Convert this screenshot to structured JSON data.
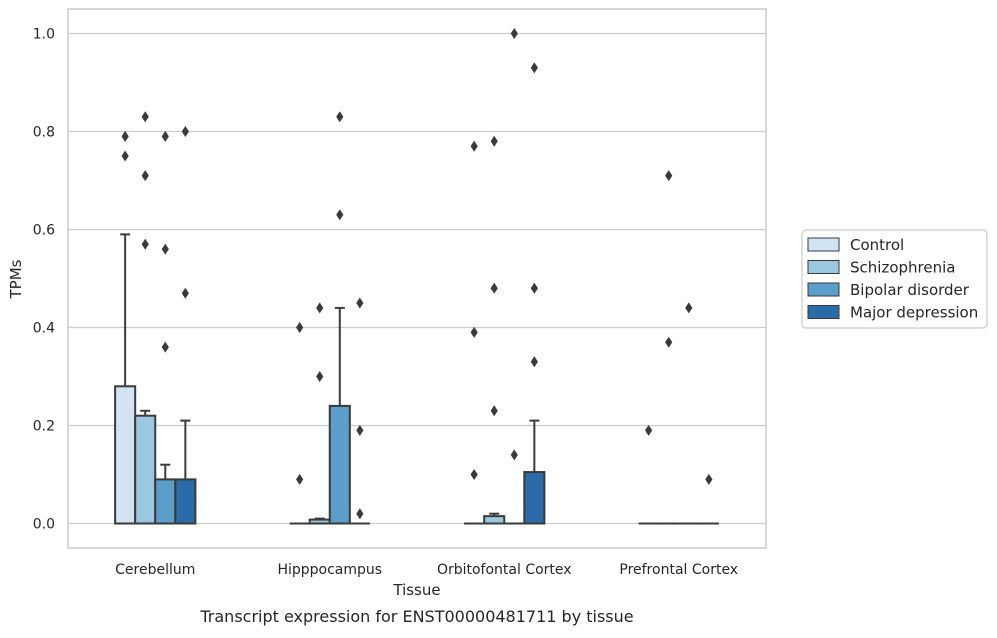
{
  "chart_data": {
    "type": "box",
    "xlabel": "Tissue",
    "ylabel": "TPMs",
    "caption": "Transcript expression for ENST00000481711 by tissue",
    "categories": [
      "Cerebellum",
      "Hipppocampus",
      "Orbitofontal Cortex",
      "Prefrontal Cortex"
    ],
    "ylim": [
      -0.05,
      1.05
    ],
    "yticks": [
      "0.0",
      "0.2",
      "0.4",
      "0.6",
      "0.8",
      "1.0"
    ],
    "grid": true,
    "legend_position": "right",
    "series": [
      {
        "name": "Control",
        "color": "#d2e3f3",
        "boxes": [
          {
            "q1": 0.0,
            "median": 0.0,
            "q3": 0.28,
            "whisker_low": 0.0,
            "whisker_high": 0.59,
            "outliers": [
              0.79,
              0.75
            ]
          },
          {
            "q1": 0.0,
            "median": 0.0,
            "q3": 0.0,
            "whisker_low": 0.0,
            "whisker_high": 0.0,
            "outliers": [
              0.4,
              0.09
            ]
          },
          {
            "q1": 0.0,
            "median": 0.0,
            "q3": 0.0,
            "whisker_low": 0.0,
            "whisker_high": 0.0,
            "outliers": [
              0.77,
              0.39,
              0.1
            ]
          },
          {
            "q1": 0.0,
            "median": 0.0,
            "q3": 0.0,
            "whisker_low": 0.0,
            "whisker_high": 0.0,
            "outliers": [
              0.19
            ]
          }
        ]
      },
      {
        "name": "Schizophrenia",
        "color": "#9ac8e0",
        "boxes": [
          {
            "q1": 0.0,
            "median": 0.0,
            "q3": 0.22,
            "whisker_low": 0.0,
            "whisker_high": 0.23,
            "outliers": [
              0.83,
              0.71,
              0.57
            ]
          },
          {
            "q1": 0.0,
            "median": 0.0,
            "q3": 0.008,
            "whisker_low": 0.0,
            "whisker_high": 0.01,
            "outliers": [
              0.44,
              0.3
            ]
          },
          {
            "q1": 0.0,
            "median": 0.0,
            "q3": 0.015,
            "whisker_low": 0.0,
            "whisker_high": 0.02,
            "outliers": [
              0.78,
              0.48,
              0.23
            ]
          },
          {
            "q1": 0.0,
            "median": 0.0,
            "q3": 0.0,
            "whisker_low": 0.0,
            "whisker_high": 0.0,
            "outliers": [
              0.71,
              0.37
            ]
          }
        ]
      },
      {
        "name": "Bipolar disorder",
        "color": "#5a9ec9",
        "boxes": [
          {
            "q1": 0.0,
            "median": 0.0,
            "q3": 0.09,
            "whisker_low": 0.0,
            "whisker_high": 0.12,
            "outliers": [
              0.79,
              0.56,
              0.36
            ]
          },
          {
            "q1": 0.0,
            "median": 0.0,
            "q3": 0.24,
            "whisker_low": 0.0,
            "whisker_high": 0.44,
            "outliers": [
              0.83,
              0.63
            ]
          },
          {
            "q1": 0.0,
            "median": 0.0,
            "q3": 0.0,
            "whisker_low": 0.0,
            "whisker_high": 0.0,
            "outliers": [
              1.0,
              0.14
            ]
          },
          {
            "q1": 0.0,
            "median": 0.0,
            "q3": 0.0,
            "whisker_low": 0.0,
            "whisker_high": 0.0,
            "outliers": [
              0.44
            ]
          }
        ]
      },
      {
        "name": "Major depression",
        "color": "#2b6ca8",
        "boxes": [
          {
            "q1": 0.0,
            "median": 0.0,
            "q3": 0.09,
            "whisker_low": 0.0,
            "whisker_high": 0.21,
            "outliers": [
              0.8,
              0.47
            ]
          },
          {
            "q1": 0.0,
            "median": 0.0,
            "q3": 0.0,
            "whisker_low": 0.0,
            "whisker_high": 0.0,
            "outliers": [
              0.45,
              0.19,
              0.02
            ]
          },
          {
            "q1": 0.0,
            "median": 0.0,
            "q3": 0.105,
            "whisker_low": 0.0,
            "whisker_high": 0.21,
            "outliers": [
              0.93,
              0.48,
              0.33
            ]
          },
          {
            "q1": 0.0,
            "median": 0.0,
            "q3": 0.0,
            "whisker_low": 0.0,
            "whisker_high": 0.0,
            "outliers": [
              0.09
            ]
          }
        ]
      }
    ],
    "line_color": "#3a3a3a",
    "grid_color": "#cccccc",
    "frame_color": "#cccccc"
  }
}
